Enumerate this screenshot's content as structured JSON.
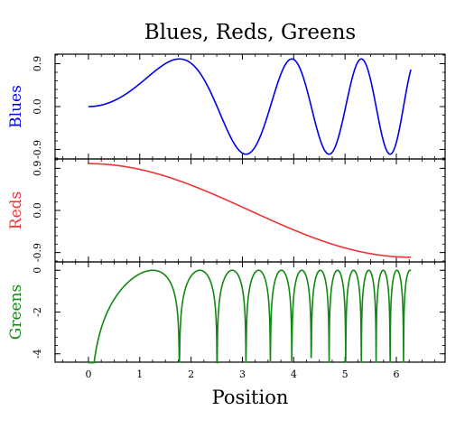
{
  "figure_title": "Blues, Reds, Greens",
  "chart_data": [
    {
      "type": "line",
      "ylabel": "Blues",
      "color": "#0000ee",
      "xlim": [
        -0.65,
        6.95
      ],
      "ylim": [
        -1.1,
        1.1
      ],
      "yticks": [
        -0.9,
        0.0,
        0.9
      ],
      "yticklabels": [
        "-0.9",
        "0.0",
        "0.9"
      ],
      "formula": "sin(x^2 / 2)",
      "series": [
        {
          "values": [
            [
              0.0,
              0.0
            ],
            [
              0.7,
              -0.24
            ],
            [
              1.0,
              0.48
            ],
            [
              1.77,
              1.0
            ],
            [
              2.4,
              0.0
            ],
            [
              3.07,
              -1.0
            ],
            [
              3.5,
              0.0
            ],
            [
              3.97,
              1.0
            ],
            [
              4.35,
              0.0
            ],
            [
              4.78,
              -1.0
            ],
            [
              5.0,
              0.0
            ],
            [
              5.42,
              1.0
            ],
            [
              5.8,
              0.0
            ],
            [
              6.0,
              -0.9
            ],
            [
              6.28,
              0.0
            ]
          ]
        }
      ]
    },
    {
      "type": "line",
      "ylabel": "Reds",
      "color": "#ee3333",
      "xlim": [
        -0.65,
        6.95
      ],
      "ylim": [
        -1.1,
        1.1
      ],
      "yticks": [
        -0.9,
        0.0,
        0.9
      ],
      "yticklabels": [
        "-0.9",
        "0.0",
        "0.9"
      ],
      "formula": "cos(x / 2)",
      "series": [
        {
          "values": [
            [
              0.0,
              1.0
            ],
            [
              1.0,
              0.88
            ],
            [
              2.0,
              0.54
            ],
            [
              3.14,
              0.0
            ],
            [
              4.0,
              -0.42
            ],
            [
              5.0,
              -0.8
            ],
            [
              6.28,
              -1.0
            ]
          ]
        }
      ]
    },
    {
      "type": "line",
      "ylabel": "Greens",
      "color": "#118811",
      "xlim": [
        -0.65,
        6.95
      ],
      "ylim": [
        -4.4,
        0.4
      ],
      "yticks": [
        -4,
        -2,
        0
      ],
      "yticklabels": [
        "-4",
        "-2",
        "0"
      ],
      "formula": "log(|sin(x^2)|)",
      "series": [
        {
          "values": [
            [
              0.2,
              -3.2
            ],
            [
              0.6,
              -1.0
            ],
            [
              1.0,
              -0.17
            ],
            [
              1.25,
              0.0
            ],
            [
              1.77,
              -4.0
            ],
            [
              2.17,
              0.0
            ],
            [
              2.51,
              -4.0
            ],
            [
              2.8,
              0.0
            ],
            [
              3.07,
              -4.0
            ],
            [
              3.3,
              0.0
            ],
            [
              3.54,
              -4.0
            ],
            [
              3.75,
              0.0
            ],
            [
              3.96,
              -4.0
            ],
            [
              4.16,
              0.0
            ],
            [
              4.34,
              -4.0
            ],
            [
              4.9,
              0.0
            ],
            [
              5.6,
              0.0
            ],
            [
              6.27,
              0.0
            ]
          ]
        }
      ]
    }
  ],
  "xaxis": {
    "label": "Position",
    "ticks": [
      0,
      1,
      2,
      3,
      4,
      5,
      6
    ],
    "ticklabels": [
      "0",
      "1",
      "2",
      "3",
      "4",
      "5",
      "6"
    ]
  }
}
